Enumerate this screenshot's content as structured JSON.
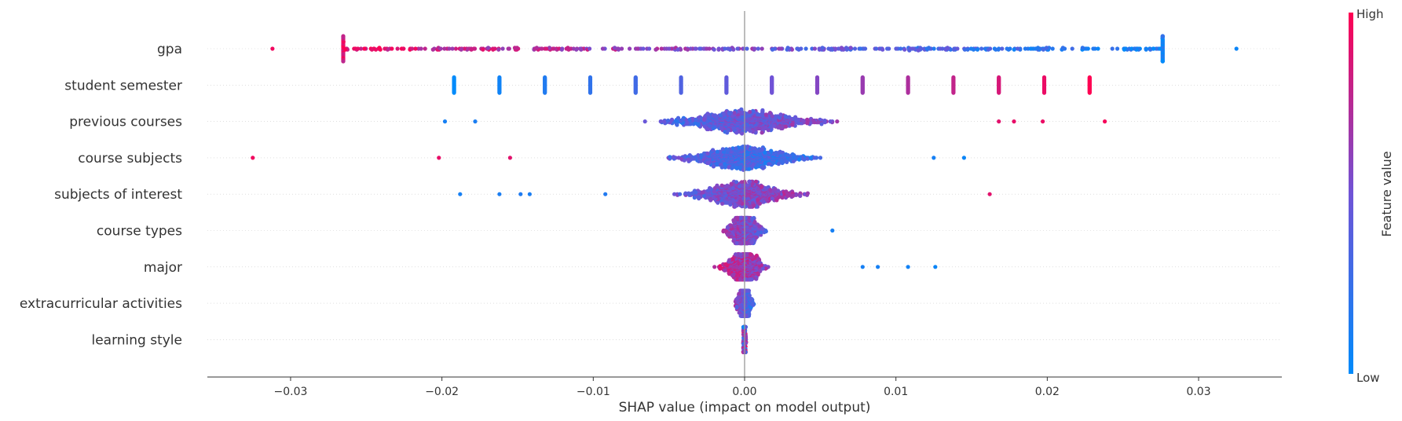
{
  "chart_data": {
    "type": "scatter",
    "subtype": "shap-beeswarm",
    "xlabel": "SHAP value (impact on model output)",
    "xlim": [
      -0.0355,
      0.0355
    ],
    "xticks": [
      -0.03,
      -0.02,
      -0.01,
      0.0,
      0.01,
      0.02,
      0.03
    ],
    "xtick_labels": [
      "−0.03",
      "−0.02",
      "−0.01",
      "0.00",
      "0.01",
      "0.02",
      "0.03"
    ],
    "features": [
      {
        "name": "gpa",
        "min": -0.0312,
        "max": 0.0325,
        "spread": 0.0235,
        "density": 0.0,
        "correlation": -1,
        "n": 460,
        "extreme": [
          [
            -0.0312,
            0.95
          ],
          [
            0.0325,
            0.05
          ]
        ]
      },
      {
        "name": "student semester",
        "min": -0.0192,
        "max": 0.0228,
        "spread": 0.0,
        "density": 0.0,
        "correlation": 1,
        "n": 0,
        "discrete": [
          -0.0192,
          -0.0162,
          -0.0132,
          -0.0102,
          -0.0072,
          -0.0042,
          -0.0012,
          0.0018,
          0.0048,
          0.0078,
          0.0108,
          0.0138,
          0.0168,
          0.0198,
          0.0228
        ]
      },
      {
        "name": "previous courses",
        "min": -0.0198,
        "max": 0.0238,
        "spread": 0.0058,
        "density": 1.0,
        "correlation": 1,
        "n": 1100,
        "extreme": [
          [
            -0.0198,
            0.1
          ],
          [
            -0.0178,
            0.12
          ],
          [
            0.0168,
            0.9
          ],
          [
            0.0178,
            0.92
          ],
          [
            0.0197,
            0.93
          ],
          [
            0.0238,
            0.97
          ]
        ]
      },
      {
        "name": "course subjects",
        "min": -0.0325,
        "max": 0.0145,
        "spread": 0.0048,
        "density": 1.0,
        "correlation": -1,
        "n": 1000,
        "extreme": [
          [
            -0.0325,
            0.95
          ],
          [
            -0.0202,
            0.92
          ],
          [
            -0.0155,
            0.9
          ],
          [
            0.0125,
            0.1
          ],
          [
            0.0145,
            0.05
          ]
        ]
      },
      {
        "name": "subjects of interest",
        "min": -0.0188,
        "max": 0.0162,
        "spread": 0.0042,
        "density": 1.0,
        "correlation": 1,
        "n": 950,
        "extreme": [
          [
            -0.0188,
            0.1
          ],
          [
            -0.0162,
            0.12
          ],
          [
            -0.0148,
            0.14
          ],
          [
            -0.0142,
            0.12
          ],
          [
            -0.0092,
            0.15
          ],
          [
            0.0162,
            0.9
          ]
        ]
      },
      {
        "name": "course types",
        "min": -0.0048,
        "max": 0.0058,
        "spread": 0.0014,
        "density": 1.0,
        "correlation": -1,
        "n": 620,
        "extreme": [
          [
            0.0058,
            0.1
          ]
        ]
      },
      {
        "name": "major",
        "min": -0.0062,
        "max": 0.0126,
        "spread": 0.0016,
        "density": 1.0,
        "correlation": -1,
        "n": 650,
        "extreme": [
          [
            0.0078,
            0.1
          ],
          [
            0.0088,
            0.1
          ],
          [
            0.0108,
            0.08
          ],
          [
            0.0126,
            0.05
          ]
        ]
      },
      {
        "name": "extracurricular activities",
        "min": -0.0022,
        "max": 0.0015,
        "spread": 0.0006,
        "density": 1.0,
        "correlation": -1,
        "n": 380,
        "extreme": []
      },
      {
        "name": "learning style",
        "min": -0.0002,
        "max": 0.0002,
        "spread": 0.0001,
        "density": 1.0,
        "correlation": 0,
        "n": 320,
        "extreme": []
      }
    ],
    "colorbar": {
      "label": "Feature value",
      "high_label": "High",
      "low_label": "Low",
      "low_color": "#008bfb",
      "high_color": "#ff0052"
    },
    "grid": false,
    "legend": "colorbar-right"
  }
}
